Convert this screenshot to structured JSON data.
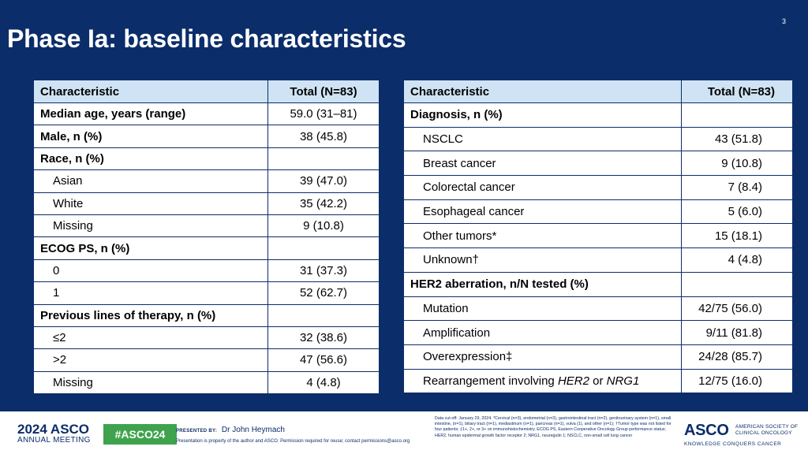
{
  "page_number": "3",
  "title": "Phase Ia: baseline characteristics",
  "left_table": {
    "headers": [
      "Characteristic",
      "Total (N=83)"
    ],
    "rows": [
      {
        "label": "Median age, years (range)",
        "value": "59.0 (31–81)",
        "bold": true,
        "indent": false
      },
      {
        "label": "Male, n (%)",
        "value": "38 (45.8)",
        "bold": true,
        "indent": false
      },
      {
        "label": "Race, n (%)",
        "value": "",
        "bold": true,
        "indent": false
      },
      {
        "label": "Asian",
        "value": "39 (47.0)",
        "bold": false,
        "indent": true
      },
      {
        "label": "White",
        "value": "35 (42.2)",
        "bold": false,
        "indent": true
      },
      {
        "label": "Missing",
        "value": "9 (10.8)",
        "bold": false,
        "indent": true
      },
      {
        "label": "ECOG PS, n (%)",
        "value": "",
        "bold": true,
        "indent": false
      },
      {
        "label": "0",
        "value": "31 (37.3)",
        "bold": false,
        "indent": true
      },
      {
        "label": "1",
        "value": "52 (62.7)",
        "bold": false,
        "indent": true
      },
      {
        "label": "Previous lines of therapy, n (%)",
        "value": "",
        "bold": true,
        "indent": false
      },
      {
        "label": "≤2",
        "value": "32 (38.6)",
        "bold": false,
        "indent": true
      },
      {
        "label": ">2",
        "value": "47 (56.6)",
        "bold": false,
        "indent": true
      },
      {
        "label": "Missing",
        "value": "4 (4.8)",
        "bold": false,
        "indent": true
      }
    ]
  },
  "right_table": {
    "headers": [
      "Characteristic",
      "Total (N=83)"
    ],
    "rows": [
      {
        "label": "Diagnosis, n (%)",
        "value": "",
        "bold": true,
        "indent": false
      },
      {
        "label": "NSCLC",
        "value": "43 (51.8)",
        "bold": false,
        "indent": true
      },
      {
        "label": "Breast cancer",
        "value": "9 (10.8)",
        "bold": false,
        "indent": true
      },
      {
        "label": "Colorectal cancer",
        "value": "7 (8.4)",
        "bold": false,
        "indent": true
      },
      {
        "label": "Esophageal cancer",
        "value": "5 (6.0)",
        "bold": false,
        "indent": true
      },
      {
        "label": "Other tumors*",
        "value": "15 (18.1)",
        "bold": false,
        "indent": true
      },
      {
        "label": "Unknown†",
        "value": "4 (4.8)",
        "bold": false,
        "indent": true
      },
      {
        "label": "HER2 aberration, n/N tested (%)",
        "value": "",
        "bold": true,
        "indent": false
      },
      {
        "label": "Mutation",
        "value": "42/75 (56.0)",
        "bold": false,
        "indent": true
      },
      {
        "label": "Amplification",
        "value": "9/11 (81.8)",
        "bold": false,
        "indent": true
      },
      {
        "label": "Overexpression‡",
        "value": "24/28 (85.7)",
        "bold": false,
        "indent": true
      }
    ],
    "last_row": {
      "label_prefix": "Rearrangement involving ",
      "label_italic_1": "HER2",
      "label_mid": " or ",
      "label_italic_2": "NRG1",
      "value": "12/75 (16.0)"
    }
  },
  "footer": {
    "meeting_year_brand": "2024 ASCO",
    "meeting_name": "ANNUAL MEETING",
    "hashtag": "#ASCO24",
    "presented_by_label": "PRESENTED BY:",
    "presenter": "Dr John Heymach",
    "property_notice": "Presentation is property of the author and ASCO. Permission required for reuse; contact permissions@asco.org",
    "footnote": "Data cut-off: January 29, 2024. *Cervical (n=3), endometrial (n=3), gastrointestinal tract (n=2), genitourinary system (n=1), small intestine, (n=1), biliary tract (n=1), mediastinum (n=1), pancreas (n=1), vulva (1), and other (n=1); †Tumor type was not listed for four patients; ‡1+, 2+, or 3+ on immunohistochemistry. ECOG PS, Eastern Cooperative Oncology Group performance status; HER2, human epidermal growth factor receptor 2; NRG1, neuregulin 1; NSCLC, non-small cell lung cancer",
    "logo_word": "ASCO",
    "logo_society_1": "AMERICAN SOCIETY OF",
    "logo_society_2": "CLINICAL ONCOLOGY",
    "logo_tagline": "KNOWLEDGE CONQUERS CANCER"
  }
}
